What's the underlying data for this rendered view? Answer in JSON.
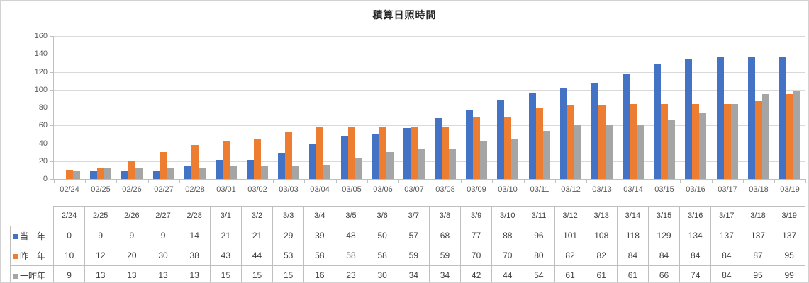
{
  "chart_data": {
    "type": "bar",
    "title": "積算日照時間",
    "x_axis_labels": [
      "02/24",
      "02/25",
      "02/26",
      "02/27",
      "02/28",
      "03/01",
      "03/02",
      "03/03",
      "03/04",
      "03/05",
      "03/06",
      "03/07",
      "03/08",
      "03/09",
      "03/10",
      "03/11",
      "03/12",
      "03/13",
      "03/14",
      "03/15",
      "03/16",
      "03/17",
      "03/18",
      "03/19"
    ],
    "table_headers": [
      "2/24",
      "2/25",
      "2/26",
      "2/27",
      "2/28",
      "3/1",
      "3/2",
      "3/3",
      "3/4",
      "3/5",
      "3/6",
      "3/7",
      "3/8",
      "3/9",
      "3/10",
      "3/11",
      "3/12",
      "3/13",
      "3/14",
      "3/15",
      "3/16",
      "3/17",
      "3/18",
      "3/19"
    ],
    "y_ticks": [
      0,
      20,
      40,
      60,
      80,
      100,
      120,
      140,
      160
    ],
    "ylim": [
      0,
      160
    ],
    "grid": true,
    "legend_position": "data-table-row-labels",
    "series": [
      {
        "name": "当　年",
        "color": "#4472C4",
        "values": [
          0,
          9,
          9,
          9,
          14,
          21,
          21,
          29,
          39,
          48,
          50,
          57,
          68,
          77,
          88,
          96,
          101,
          108,
          118,
          129,
          134,
          137,
          137,
          137
        ]
      },
      {
        "name": "昨　年",
        "color": "#ED7D31",
        "values": [
          10,
          12,
          20,
          30,
          38,
          43,
          44,
          53,
          58,
          58,
          58,
          59,
          59,
          70,
          70,
          80,
          82,
          82,
          84,
          84,
          84,
          84,
          87,
          95
        ]
      },
      {
        "name": "一昨年",
        "color": "#A5A5A5",
        "values": [
          9,
          13,
          13,
          13,
          13,
          15,
          15,
          15,
          16,
          23,
          30,
          34,
          34,
          42,
          44,
          54,
          61,
          61,
          61,
          66,
          74,
          84,
          95,
          99
        ]
      }
    ]
  },
  "colors": {
    "series_this_year": "#4472C4",
    "series_last_year": "#ED7D31",
    "series_two_years_ago": "#A5A5A5",
    "gridline": "#D9D9D9",
    "axis_line": "#BFBFBF",
    "axis_label_text": "#595959",
    "table_border": "#BFBFBF",
    "table_text": "#404040",
    "title_text": "#262626",
    "background": "#FFFFFF"
  }
}
